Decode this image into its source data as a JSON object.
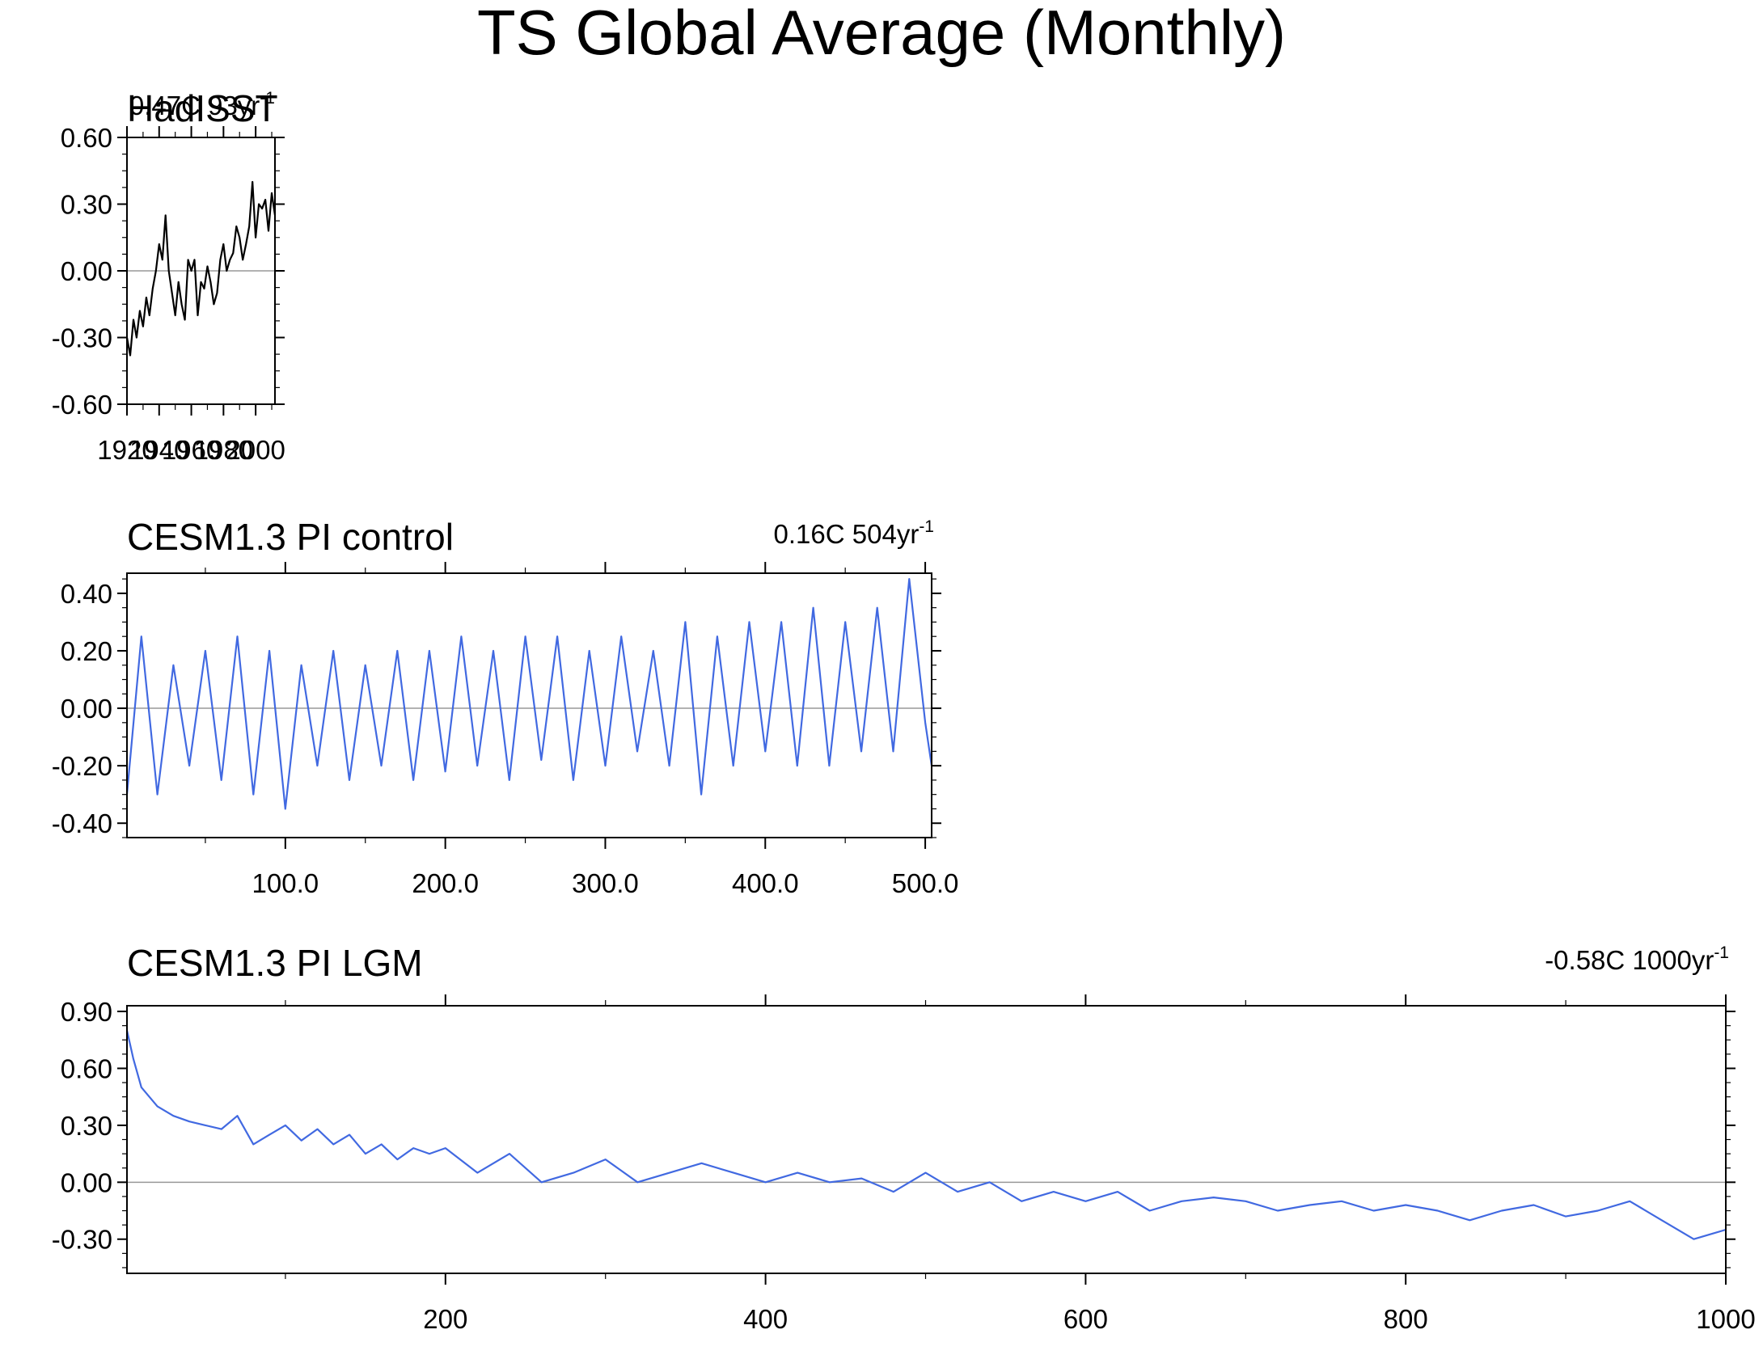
{
  "figure": {
    "title": "TS Global Average (Monthly)"
  },
  "chart_data": [
    {
      "type": "line",
      "title": "HadISST",
      "trend_value": "0.47C",
      "trend_span": "93yr",
      "trend_exponent": "-1",
      "xlabel": "",
      "ylabel": "",
      "xlim": [
        1920,
        2012
      ],
      "ylim": [
        -0.6,
        0.6
      ],
      "yticks": [
        -0.6,
        -0.3,
        0.0,
        0.3,
        0.6
      ],
      "ytick_labels": [
        "-0.60",
        "-0.30",
        "0.00",
        "0.30",
        "0.60"
      ],
      "xticks": [
        1920,
        1940,
        1960,
        1980,
        2000
      ],
      "xtick_labels": [
        "1920",
        "1940",
        "1960",
        "1980",
        "2000"
      ],
      "zero_line": true,
      "series": [
        {
          "color": "#000000",
          "x": [
            1920,
            1922,
            1924,
            1926,
            1928,
            1930,
            1932,
            1934,
            1936,
            1938,
            1940,
            1942,
            1944,
            1946,
            1948,
            1950,
            1952,
            1954,
            1956,
            1958,
            1960,
            1962,
            1964,
            1966,
            1968,
            1970,
            1972,
            1974,
            1976,
            1978,
            1980,
            1982,
            1984,
            1986,
            1988,
            1990,
            1992,
            1994,
            1996,
            1998,
            2000,
            2002,
            2004,
            2006,
            2008,
            2010,
            2012
          ],
          "values": [
            -0.3,
            -0.38,
            -0.22,
            -0.3,
            -0.18,
            -0.25,
            -0.12,
            -0.2,
            -0.08,
            0.0,
            0.12,
            0.05,
            0.25,
            0.0,
            -0.1,
            -0.2,
            -0.05,
            -0.15,
            -0.22,
            0.05,
            0.0,
            0.05,
            -0.2,
            -0.05,
            -0.08,
            0.02,
            -0.05,
            -0.15,
            -0.1,
            0.05,
            0.12,
            0.0,
            0.05,
            0.08,
            0.2,
            0.15,
            0.05,
            0.12,
            0.2,
            0.4,
            0.15,
            0.3,
            0.28,
            0.32,
            0.18,
            0.35,
            0.25
          ]
        }
      ]
    },
    {
      "type": "line",
      "title": "CESM1.3 PI control",
      "trend_value": "0.16C",
      "trend_span": "504yr",
      "trend_exponent": "-1",
      "xlabel": "",
      "ylabel": "",
      "xlim": [
        1,
        504
      ],
      "ylim": [
        -0.45,
        0.47
      ],
      "yticks": [
        -0.4,
        -0.2,
        0.0,
        0.2,
        0.4
      ],
      "ytick_labels": [
        "-0.40",
        "-0.20",
        "0.00",
        "0.20",
        "0.40"
      ],
      "xticks": [
        100,
        200,
        300,
        400,
        500
      ],
      "xtick_labels": [
        "100.0",
        "200.0",
        "300.0",
        "400.0",
        "500.0"
      ],
      "zero_line": true,
      "series": [
        {
          "color": "#4169E1",
          "x": [
            1,
            10,
            20,
            30,
            40,
            50,
            60,
            70,
            80,
            90,
            100,
            110,
            120,
            130,
            140,
            150,
            160,
            170,
            180,
            190,
            200,
            210,
            220,
            230,
            240,
            250,
            260,
            270,
            280,
            290,
            300,
            310,
            320,
            330,
            340,
            350,
            360,
            370,
            380,
            390,
            400,
            410,
            420,
            430,
            440,
            450,
            460,
            470,
            480,
            490,
            500,
            504
          ],
          "values": [
            -0.3,
            0.25,
            -0.3,
            0.15,
            -0.2,
            0.2,
            -0.25,
            0.25,
            -0.3,
            0.2,
            -0.35,
            0.15,
            -0.2,
            0.2,
            -0.25,
            0.15,
            -0.2,
            0.2,
            -0.25,
            0.2,
            -0.22,
            0.25,
            -0.2,
            0.2,
            -0.25,
            0.25,
            -0.18,
            0.25,
            -0.25,
            0.2,
            -0.2,
            0.25,
            -0.15,
            0.2,
            -0.2,
            0.3,
            -0.3,
            0.25,
            -0.2,
            0.3,
            -0.15,
            0.3,
            -0.2,
            0.35,
            -0.2,
            0.3,
            -0.15,
            0.35,
            -0.15,
            0.45,
            -0.05,
            -0.2
          ]
        }
      ]
    },
    {
      "type": "line",
      "title": "CESM1.3 PI LGM",
      "trend_value": "-0.58C",
      "trend_span": "1000yr",
      "trend_exponent": "-1",
      "xlabel": "",
      "ylabel": "",
      "xlim": [
        1,
        1000
      ],
      "ylim": [
        -0.48,
        0.93
      ],
      "yticks": [
        -0.3,
        0.0,
        0.3,
        0.6,
        0.9
      ],
      "ytick_labels": [
        "-0.30",
        "0.00",
        "0.30",
        "0.60",
        "0.90"
      ],
      "xticks": [
        200,
        400,
        600,
        800,
        1000
      ],
      "xtick_labels": [
        "200",
        "400",
        "600",
        "800",
        "1000"
      ],
      "zero_line": true,
      "series": [
        {
          "color": "#4169E1",
          "x": [
            1,
            5,
            10,
            20,
            30,
            40,
            50,
            60,
            70,
            80,
            90,
            100,
            110,
            120,
            130,
            140,
            150,
            160,
            170,
            180,
            190,
            200,
            220,
            240,
            260,
            280,
            300,
            320,
            340,
            360,
            380,
            400,
            420,
            440,
            460,
            480,
            500,
            520,
            540,
            560,
            580,
            600,
            620,
            640,
            660,
            680,
            700,
            720,
            740,
            760,
            780,
            800,
            820,
            840,
            860,
            880,
            900,
            920,
            940,
            960,
            980,
            1000
          ],
          "values": [
            0.8,
            0.65,
            0.5,
            0.4,
            0.35,
            0.32,
            0.3,
            0.28,
            0.35,
            0.2,
            0.25,
            0.3,
            0.22,
            0.28,
            0.2,
            0.25,
            0.15,
            0.2,
            0.12,
            0.18,
            0.15,
            0.18,
            0.05,
            0.15,
            0.0,
            0.05,
            0.12,
            0.0,
            0.05,
            0.1,
            0.05,
            0.0,
            0.05,
            0.0,
            0.02,
            -0.05,
            0.05,
            -0.05,
            0.0,
            -0.1,
            -0.05,
            -0.1,
            -0.05,
            -0.15,
            -0.1,
            -0.08,
            -0.1,
            -0.15,
            -0.12,
            -0.1,
            -0.15,
            -0.12,
            -0.15,
            -0.2,
            -0.15,
            -0.12,
            -0.18,
            -0.15,
            -0.1,
            -0.2,
            -0.3,
            -0.25
          ]
        }
      ]
    }
  ]
}
